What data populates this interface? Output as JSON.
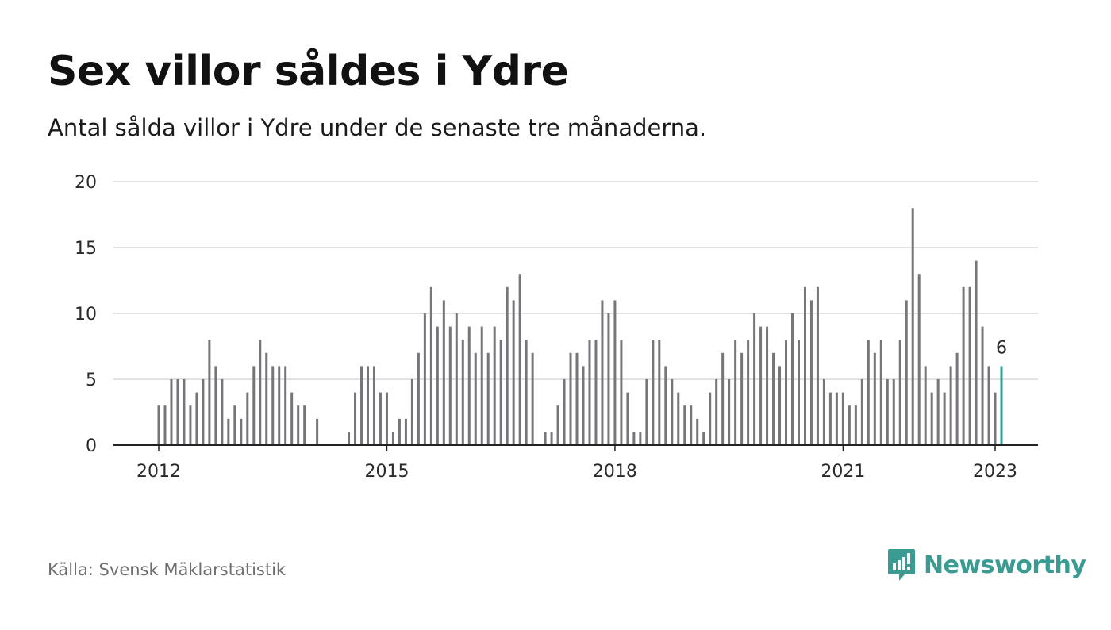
{
  "title": "Sex villor såldes i Ydre",
  "subtitle": "Antal sålda villor i Ydre under de senaste tre månaderna.",
  "source": "Källa: Svensk Mäklarstatistik",
  "brand": {
    "name": "Newsworthy",
    "color": "#3a9b92",
    "icon": "bar-chart-speech-bubble-icon"
  },
  "colors": {
    "bar": "#76767a",
    "highlight": "#2fa39a",
    "grid": "#d9d9d9",
    "axis": "#222222"
  },
  "chart_data": {
    "type": "bar",
    "title": "Sex villor såldes i Ydre",
    "subtitle": "Antal sålda villor i Ydre under de senaste tre månaderna.",
    "ylim": [
      0,
      20
    ],
    "yticks": [
      0,
      5,
      10,
      15,
      20
    ],
    "xticks": [
      "2012",
      "2015",
      "2018",
      "2021",
      "2023"
    ],
    "grid": true,
    "start": "2012-01",
    "end": "2023-01",
    "highlight_label": "6",
    "values": [
      3,
      3,
      5,
      5,
      5,
      3,
      4,
      5,
      8,
      6,
      5,
      2,
      3,
      2,
      4,
      6,
      8,
      7,
      6,
      6,
      6,
      4,
      3,
      3,
      0,
      2,
      0,
      0,
      0,
      0,
      1,
      4,
      6,
      6,
      6,
      4,
      4,
      1,
      2,
      2,
      5,
      7,
      10,
      12,
      9,
      11,
      9,
      10,
      8,
      9,
      7,
      9,
      7,
      9,
      8,
      12,
      11,
      13,
      8,
      7,
      0,
      1,
      1,
      3,
      5,
      7,
      7,
      6,
      8,
      8,
      11,
      10,
      11,
      8,
      4,
      1,
      1,
      5,
      8,
      8,
      6,
      5,
      4,
      3,
      3,
      2,
      1,
      4,
      5,
      7,
      5,
      8,
      7,
      8,
      10,
      9,
      9,
      7,
      6,
      8,
      10,
      8,
      12,
      11,
      12,
      5,
      4,
      4,
      4,
      3,
      3,
      5,
      8,
      7,
      8,
      5,
      5,
      8,
      11,
      18,
      13,
      6,
      4,
      5,
      4,
      6,
      7,
      12,
      12,
      14,
      9,
      6,
      4,
      6
    ]
  }
}
